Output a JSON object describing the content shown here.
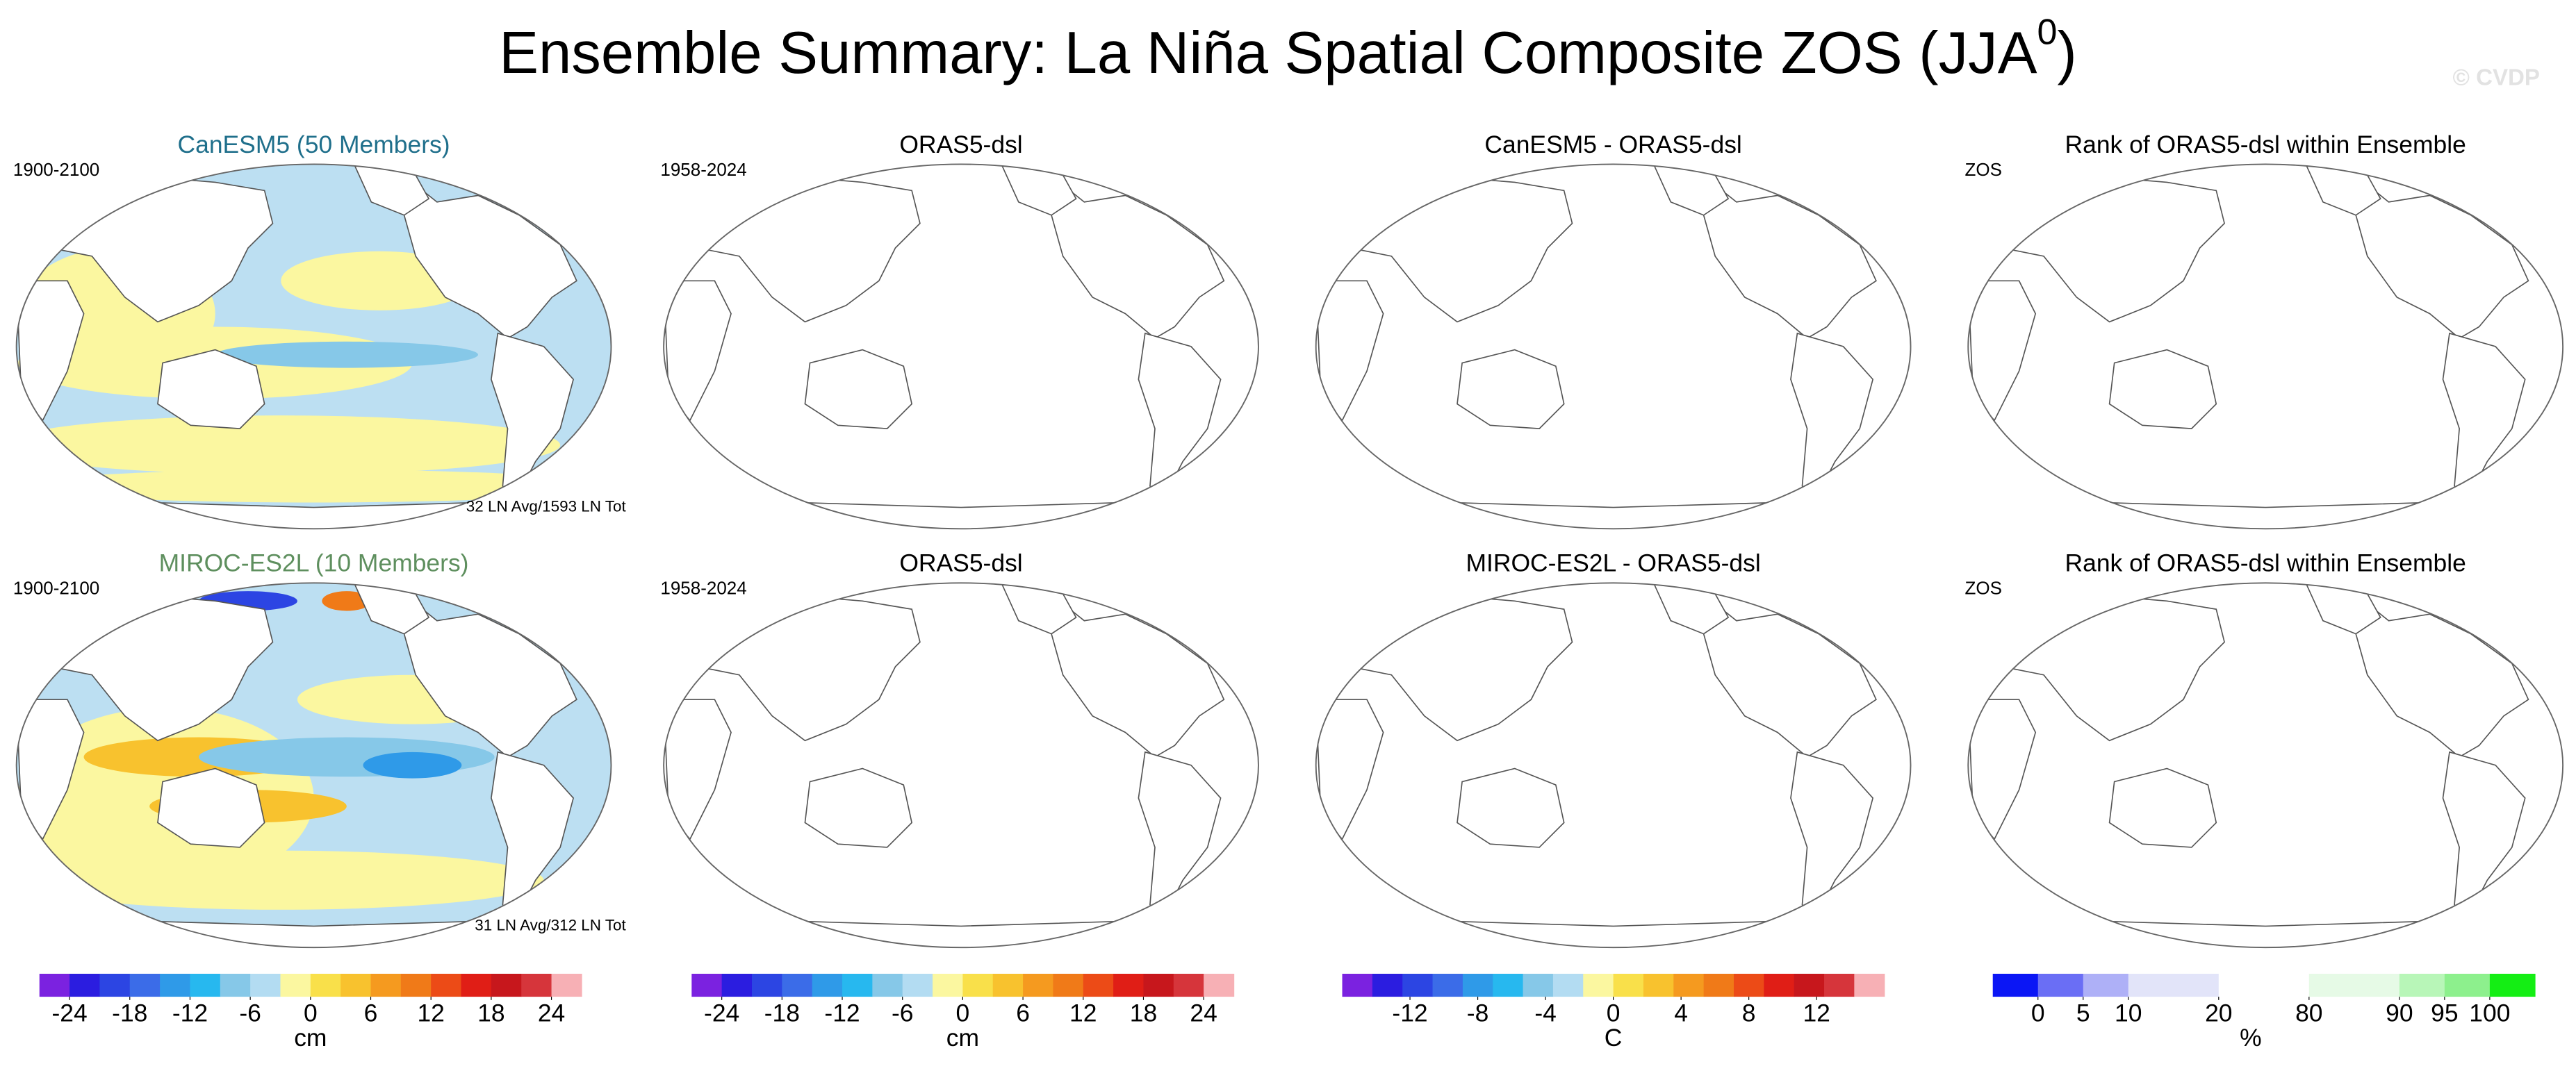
{
  "title": "Ensemble Summary: La Niña Spatial Composite ZOS (JJA",
  "title_superscript": "0",
  "watermark": "© CVDP",
  "panels": [
    {
      "title": "CanESM5 (50 Members)",
      "title_color": "#1f6f8b",
      "left_label": "1900-2100",
      "footnote": "32 LN Avg/1593 LN Tot"
    },
    {
      "title": "ORAS5-dsl",
      "left_label": "1958-2024"
    },
    {
      "title": "CanESM5 - ORAS5-dsl"
    },
    {
      "title": "Rank of ORAS5-dsl within Ensemble",
      "left_label": "ZOS"
    },
    {
      "title": "MIROC-ES2L (10 Members)",
      "title_color": "#5e8f5e",
      "left_label": "1900-2100",
      "footnote": "31 LN Avg/312 LN Tot"
    },
    {
      "title": "ORAS5-dsl",
      "left_label": "1958-2024"
    },
    {
      "title": "MIROC-ES2L - ORAS5-dsl"
    },
    {
      "title": "Rank of ORAS5-dsl within Ensemble",
      "left_label": "ZOS"
    }
  ],
  "colorbars": [
    {
      "colors": [
        "#7b22e0",
        "#2b1de0",
        "#2c45e3",
        "#3b6ce8",
        "#2f9ae8",
        "#27b8ef",
        "#86c8e8",
        "#b3dcf2",
        "#fbf7a0",
        "#f9e04a",
        "#f8c22e",
        "#f59a1f",
        "#f07a18",
        "#ec4b17",
        "#e01e16",
        "#c7171c",
        "#d6353b",
        "#f7b0b5"
      ],
      "ticks": [
        -24,
        -18,
        -12,
        -6,
        0,
        6,
        12,
        18,
        24
      ],
      "xlim": [
        -27,
        27
      ],
      "label": "cm"
    },
    {
      "colors": [
        "#7b22e0",
        "#2b1de0",
        "#2c45e3",
        "#3b6ce8",
        "#2f9ae8",
        "#27b8ef",
        "#86c8e8",
        "#b3dcf2",
        "#fbf7a0",
        "#f9e04a",
        "#f8c22e",
        "#f59a1f",
        "#f07a18",
        "#ec4b17",
        "#e01e16",
        "#c7171c",
        "#d6353b",
        "#f7b0b5"
      ],
      "ticks": [
        -24,
        -18,
        -12,
        -6,
        0,
        6,
        12,
        18,
        24
      ],
      "xlim": [
        -27,
        27
      ],
      "label": "cm"
    },
    {
      "colors": [
        "#7b22e0",
        "#2b1de0",
        "#2c45e3",
        "#3b6ce8",
        "#2f9ae8",
        "#27b8ef",
        "#86c8e8",
        "#b3dcf2",
        "#fbf7a0",
        "#f9e04a",
        "#f8c22e",
        "#f59a1f",
        "#f07a18",
        "#ec4b17",
        "#e01e16",
        "#c7171c",
        "#d6353b",
        "#f7b0b5"
      ],
      "ticks": [
        -12,
        -8,
        -4,
        0,
        4,
        8,
        12
      ],
      "xlim": [
        -16,
        16
      ],
      "label": "C"
    },
    {
      "colors": [
        "#0b16f5",
        "#6a6ef5",
        "#aeb0f7",
        "#e2e4f9",
        "#ffffff",
        "#e6fae6",
        "#b8f6b8",
        "#8df08d",
        "#14ee14"
      ],
      "ticks": [
        0,
        5,
        10,
        20,
        80,
        90,
        95,
        100
      ],
      "label": "%"
    }
  ]
}
